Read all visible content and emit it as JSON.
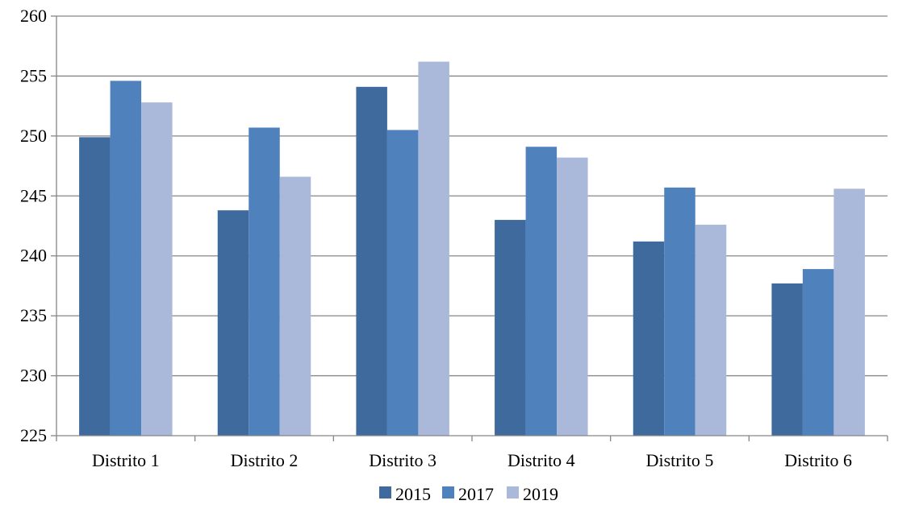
{
  "chart_data": {
    "type": "bar",
    "title": "",
    "xlabel": "",
    "ylabel": "",
    "categories": [
      "Distrito 1",
      "Distrito 2",
      "Distrito 3",
      "Distrito 4",
      "Distrito 5",
      "Distrito 6"
    ],
    "series": [
      {
        "name": "2015",
        "color": "#3f6a9e",
        "values": [
          249.9,
          243.8,
          254.1,
          243.0,
          241.2,
          237.7
        ]
      },
      {
        "name": "2017",
        "color": "#4f81bd",
        "values": [
          254.6,
          250.7,
          250.5,
          249.1,
          245.7,
          238.9
        ]
      },
      {
        "name": "2019",
        "color": "#aab9d9",
        "values": [
          252.8,
          246.6,
          256.2,
          248.2,
          242.6,
          245.6
        ]
      }
    ],
    "ylim": [
      225,
      260
    ],
    "yticks": [
      225,
      230,
      235,
      240,
      245,
      250,
      255,
      260
    ],
    "grid": true,
    "legend_position": "bottom-center"
  }
}
